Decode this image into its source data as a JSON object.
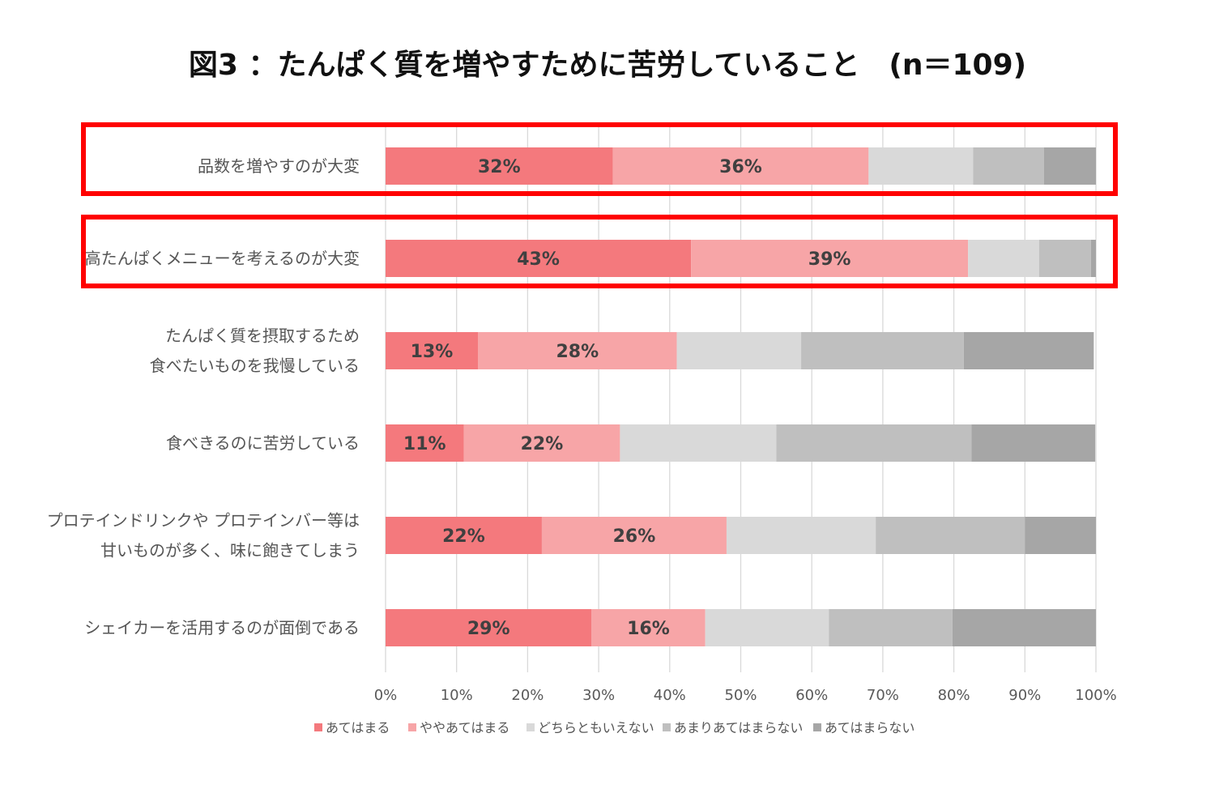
{
  "chart_data": {
    "type": "bar",
    "orientation": "horizontal",
    "stacked": true,
    "title": "図3 ：たんぱく質を増やすために苦労していること　(n＝109)",
    "categories": [
      [
        "品数を増やすのが大変"
      ],
      [
        "高たんぱくメニューを考えるのが大変"
      ],
      [
        "たんぱく質を摂取するため",
        "食べたいものを我慢している"
      ],
      [
        "食べきるのに苦労している"
      ],
      [
        "プロテインドリンクや プロテインバー等は",
        "甘いものが多く、味に飽きてしまう"
      ],
      [
        "シェイカーを活用するのが面倒である"
      ]
    ],
    "highlighted": [
      0,
      1
    ],
    "series": [
      {
        "name": "あてはまる",
        "color": "#F4797D",
        "values": [
          32,
          43,
          13,
          11,
          22,
          29
        ],
        "labels": [
          "32%",
          "43%",
          "13%",
          "11%",
          "22%",
          "29%"
        ]
      },
      {
        "name": "ややあてはまる",
        "color": "#F7A5A7",
        "values": [
          36,
          39,
          28,
          22,
          26,
          16
        ],
        "labels": [
          "36%",
          "39%",
          "28%",
          "22%",
          "26%",
          "16%"
        ]
      },
      {
        "name": "どちらともいえない",
        "color": "#D9D9D9",
        "values": [
          14.7,
          10,
          17.5,
          22,
          21,
          17.4
        ],
        "labels": [
          "",
          "",
          "",
          "",
          "",
          ""
        ]
      },
      {
        "name": "あまりあてはまらない",
        "color": "#BFBFBF",
        "values": [
          10,
          7.3,
          22.9,
          27.5,
          21,
          17.4
        ],
        "labels": [
          "",
          "",
          "",
          "",
          "",
          ""
        ]
      },
      {
        "name": "あてはまらない",
        "color": "#A6A6A6",
        "values": [
          7.3,
          0.9,
          18.3,
          17.4,
          10,
          20.2
        ],
        "labels": [
          "",
          "",
          "",
          "",
          "",
          ""
        ]
      }
    ],
    "x_ticks": [
      "0%",
      "10%",
      "20%",
      "30%",
      "40%",
      "50%",
      "60%",
      "70%",
      "80%",
      "90%",
      "100%"
    ],
    "xlim": [
      0,
      100
    ],
    "highlight_color": "#FF0000",
    "legend_position": "bottom"
  }
}
